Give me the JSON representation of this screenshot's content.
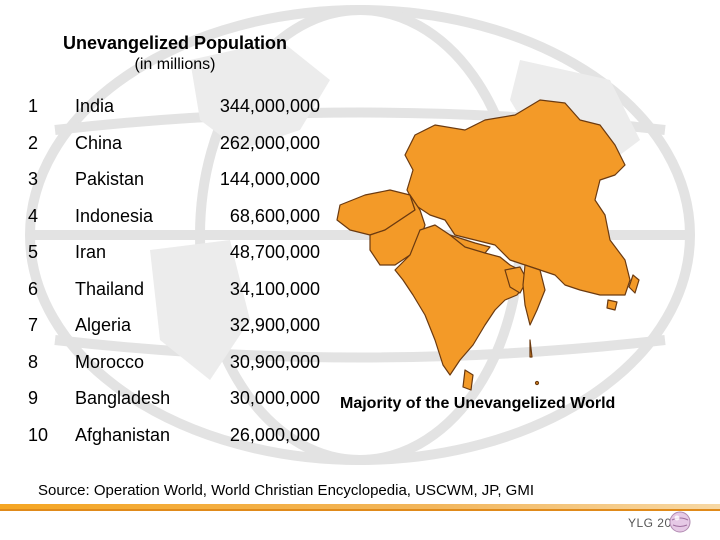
{
  "header": {
    "title": "Unevangelized Population",
    "subtitle": "(in millions)"
  },
  "rows": [
    {
      "rank": "1",
      "country": "India",
      "population": "344,000,000"
    },
    {
      "rank": "2",
      "country": "China",
      "population": "262,000,000"
    },
    {
      "rank": "3",
      "country": "Pakistan",
      "population": "144,000,000"
    },
    {
      "rank": "4",
      "country": "Indonesia",
      "population": "68,600,000"
    },
    {
      "rank": "5",
      "country": "Iran",
      "population": "48,700,000"
    },
    {
      "rank": "6",
      "country": "Thailand",
      "population": "34,100,000"
    },
    {
      "rank": "7",
      "country": "Algeria",
      "population": "32,900,000"
    },
    {
      "rank": "8",
      "country": "Morocco",
      "population": "30,900,000"
    },
    {
      "rank": "9",
      "country": "Bangladesh",
      "population": "30,000,000"
    },
    {
      "rank": "10",
      "country": "Afghanistan",
      "population": "26,000,000"
    }
  ],
  "map": {
    "caption": "Majority of the Unevangelized World",
    "fill_color": "#f39a28",
    "border_color": "#6b3a10"
  },
  "source": "Source:  Operation World, World Christian Encyclopedia, USCWM, JP, GMI",
  "footer": {
    "logo_text": "YLG 2006",
    "band_color": "#f5a623"
  }
}
